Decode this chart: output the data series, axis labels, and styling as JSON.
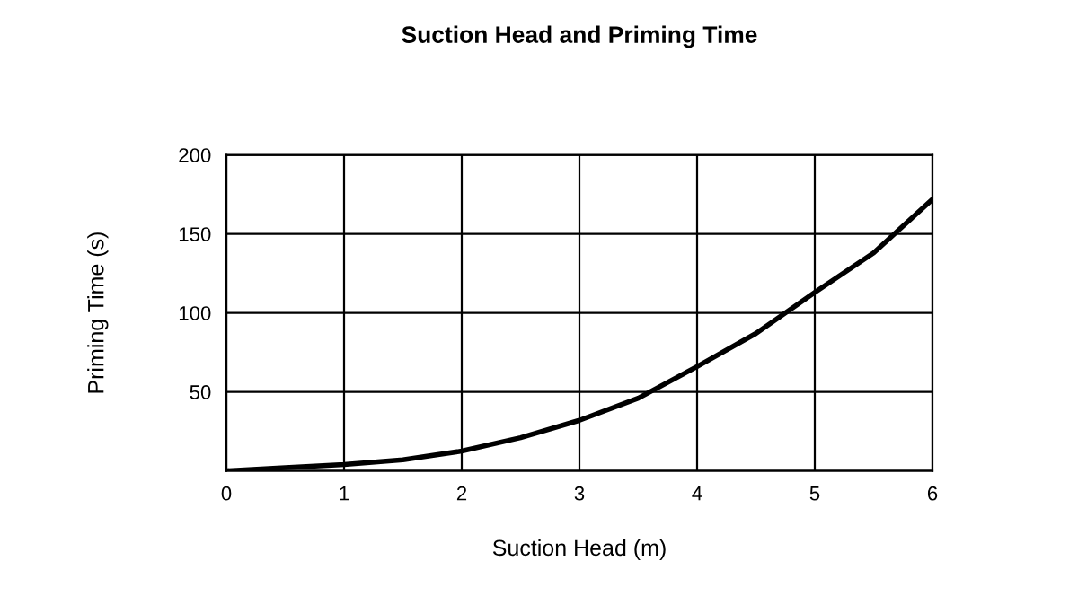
{
  "chart_data": {
    "type": "line",
    "title": "Suction Head and Priming Time",
    "xlabel": "Suction Head (m)",
    "ylabel": "Priming Time (s)",
    "x": [
      0,
      0.5,
      1,
      1.5,
      2,
      2.5,
      3,
      3.5,
      4,
      4.5,
      5,
      5.5,
      6
    ],
    "series": [
      {
        "color": "#000000",
        "values": [
          0,
          2,
          4,
          7,
          12.5,
          21,
          32,
          46,
          66,
          87,
          113,
          138,
          172
        ]
      }
    ],
    "xlim": [
      0,
      6
    ],
    "ylim": [
      0,
      200
    ],
    "xticks": [
      0,
      1,
      2,
      3,
      4,
      5,
      6
    ],
    "yticks": [
      {
        "value": 0,
        "label": null
      },
      50,
      100,
      150,
      200
    ],
    "grid": true,
    "marker": "none",
    "line_style": "solid"
  }
}
